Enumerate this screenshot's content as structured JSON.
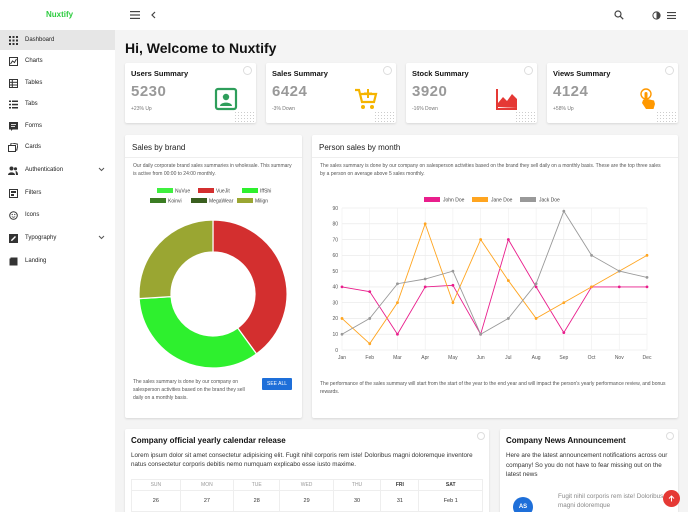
{
  "app": {
    "brand": "Nuxtify"
  },
  "header": {
    "greeting": "Hi, Welcome to Nuxtify"
  },
  "sidebar": {
    "items": [
      {
        "label": "Dashboard"
      },
      {
        "label": "Charts"
      },
      {
        "label": "Tables"
      },
      {
        "label": "Tabs"
      },
      {
        "label": "Forms"
      },
      {
        "label": "Cards"
      },
      {
        "label": "Authentication"
      },
      {
        "label": "Filters"
      },
      {
        "label": "Icons"
      },
      {
        "label": "Typography"
      },
      {
        "label": "Landing"
      }
    ]
  },
  "summary": [
    {
      "title": "Users Summary",
      "value": "5230",
      "change": "+23% Up",
      "icon": "account-box-icon",
      "color": "#2e9e5b"
    },
    {
      "title": "Sales Summary",
      "value": "6424",
      "change": "-3% Down",
      "icon": "cart-plus-icon",
      "color": "#f5b400"
    },
    {
      "title": "Stock Summary",
      "value": "3920",
      "change": "-16% Down",
      "icon": "chart-line-icon",
      "color": "#e53935"
    },
    {
      "title": "Views Summary",
      "value": "4124",
      "change": "+58% Up",
      "icon": "hand-pointer-icon",
      "color": "#ff9800"
    }
  ],
  "brand_card": {
    "title": "Sales by brand",
    "description": "Our daily corporate brand sales summaries in wholesale. This summary is active from 00:00 to 24:00 monthly.",
    "footer": "The sales summary is done by our company on salesperson activities based on the brand they sell daily on a monthly basis.",
    "button": "SEE ALL"
  },
  "person_card": {
    "title": "Person sales by month",
    "description": "The sales summary is done by our company on salesperson activities based on the brand they sell daily on a monthly basis. These are the top three sales by a person on average above 5 sales monthly.",
    "footer": "The performance of the sales summary will start from the start of the year to the end year and will impact the person's yearly performance review, and bonus rewards."
  },
  "calendar": {
    "title": "Company official yearly calendar release",
    "description": "Lorem ipsum dolor sit amet consectetur adipisicing elit. Fugit nihil corporis rem iste! Doloribus magni doloremque inventore natus consectetur corporis debitis nemo numquam explicabo esse iusto maxime.",
    "days": [
      "SUN",
      "MON",
      "TUE",
      "WED",
      "THU",
      "FRI",
      "SAT"
    ],
    "dates": [
      "26",
      "27",
      "28",
      "29",
      "30",
      "31",
      "Feb 1"
    ]
  },
  "news": {
    "title": "Company News Announcement",
    "description": "Here are the latest announcement notifications across our company! So you do not have to fear missing out on the latest news",
    "item_text": "Fugit nihil corporis rem iste! Doloribus magni doloremque",
    "avatar": "AS"
  },
  "chart_data": [
    {
      "type": "pie",
      "title": "Sales by brand",
      "legend": [
        "NuVue",
        "VueJit",
        "IffShi",
        "Koinvi",
        "MegaWear",
        "Milign"
      ],
      "categories": [
        "NuVue",
        "VueJit",
        "IffShi",
        "Koinvi",
        "MegaWear",
        "Milign"
      ],
      "values": [
        0,
        40,
        34,
        0,
        0,
        26
      ],
      "colors": [
        "#3ff03f",
        "#d32f2f",
        "#2ef02e",
        "#3b7d23",
        "#3a5f1f",
        "#9aa632"
      ],
      "donut": true
    },
    {
      "type": "line",
      "title": "Person sales by month",
      "categories": [
        "Jan",
        "Feb",
        "Mar",
        "Apr",
        "May",
        "Jun",
        "Jul",
        "Aug",
        "Sep",
        "Oct",
        "Nov",
        "Dec"
      ],
      "ylim": [
        0,
        90
      ],
      "yticks": [
        "0",
        "10",
        "20",
        "30",
        "40",
        "50",
        "60",
        "70",
        "80",
        "90"
      ],
      "series": [
        {
          "name": "John Doe",
          "color": "#e91e8c",
          "values": [
            40,
            37,
            10,
            40,
            41,
            10,
            70,
            40,
            11,
            40,
            40,
            40
          ]
        },
        {
          "name": "Jane Doe",
          "color": "#ffa520",
          "values": [
            20,
            4,
            30,
            80,
            30,
            70,
            44,
            20,
            30,
            40,
            50,
            60
          ]
        },
        {
          "name": "Jack Doe",
          "color": "#999999",
          "values": [
            10,
            20,
            42,
            45,
            50,
            10,
            20,
            42,
            88,
            60,
            50,
            46
          ]
        }
      ]
    }
  ]
}
